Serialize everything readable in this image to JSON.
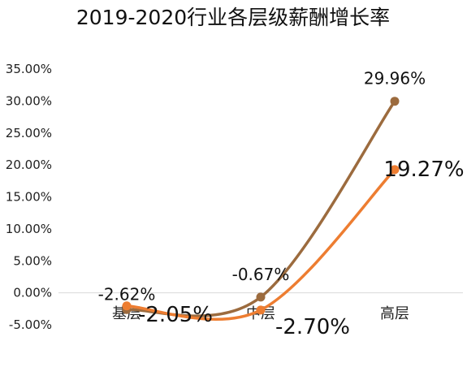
{
  "chart_data": {
    "type": "line",
    "title": "2019-2020行业各层级薪酬增长率",
    "categories": [
      "基层",
      "中层",
      "高层"
    ],
    "y_ticks": [
      "35.00%",
      "30.00%",
      "25.00%",
      "20.00%",
      "15.00%",
      "10.00%",
      "5.00%",
      "0.00%",
      "-5.00%"
    ],
    "ylim": [
      -5,
      35
    ],
    "grid": false,
    "smooth": true,
    "series": [
      {
        "color": "#9C6B3E",
        "values": [
          -2.62,
          -0.67,
          29.96
        ],
        "labels": [
          "-2.62%",
          "-0.67%",
          "29.96%"
        ]
      },
      {
        "color": "#ED7D31",
        "values": [
          -2.05,
          -2.7,
          19.27
        ],
        "labels": [
          "-2.05%",
          "-2.70%",
          "19.27%"
        ]
      }
    ]
  }
}
